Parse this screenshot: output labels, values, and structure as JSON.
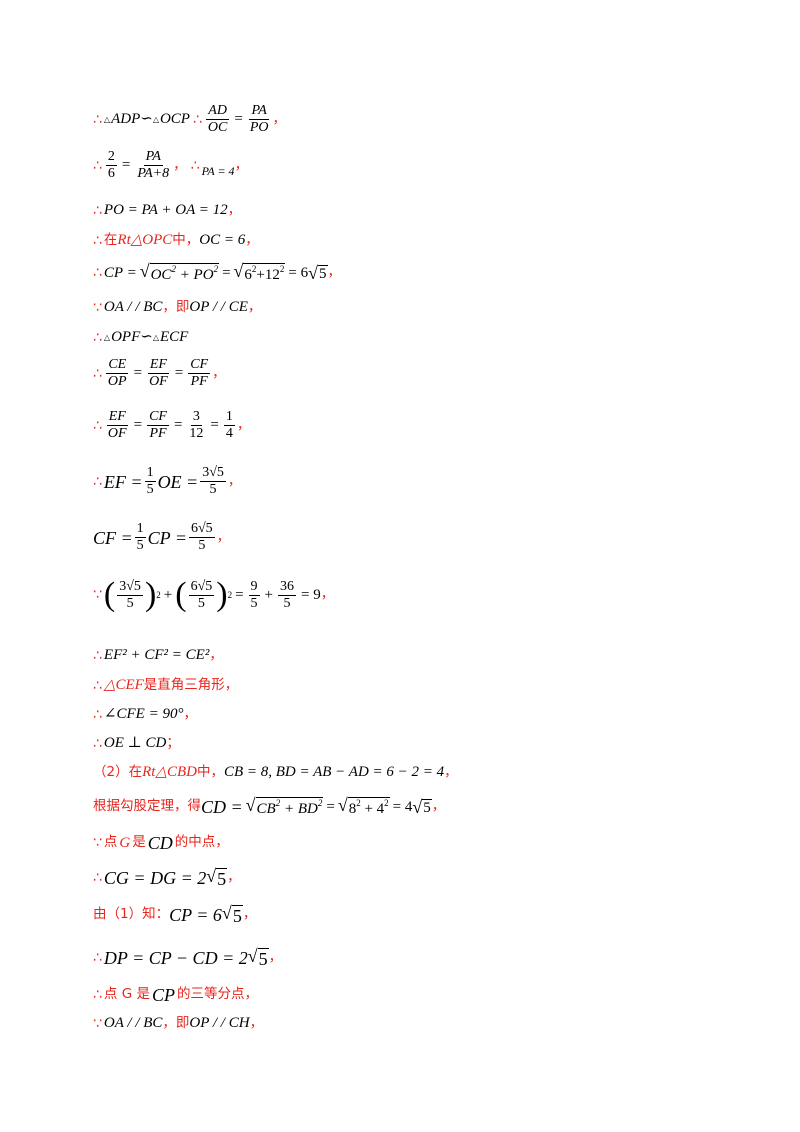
{
  "symbols": {
    "therefore": "∴",
    "because": "∵"
  },
  "lines": {
    "l1": {
      "a": "ADP∽",
      "b": "OCP",
      "fn1": "AD",
      "fd1": "OC",
      "fn2": "PA",
      "fd2": "PO"
    },
    "l2": {
      "n1": "2",
      "d1": "6",
      "n2": "PA",
      "d2": "PA+8",
      "eq": "PA = 4"
    },
    "l3": {
      "expr": "PO = PA + OA = 12"
    },
    "l4": {
      "t1": "在",
      "tri": "Rt△OPC",
      "t2": "中，",
      "expr": "OC = 6"
    },
    "l5": {
      "lhs": "CP =",
      "r1": "OC",
      "r2": "+ PO",
      "r3": "6",
      "r4": "+12",
      "eq": "= 6",
      "r5": "5"
    },
    "l6": {
      "a": "OA / / BC",
      "t": "，即",
      "b": "OP / / CE"
    },
    "l7": {
      "a": "OPF∽",
      "b": "ECF"
    },
    "l8": {
      "n1": "CE",
      "d1": "OP",
      "n2": "EF",
      "d2": "OF",
      "n3": "CF",
      "d3": "PF"
    },
    "l9": {
      "n1": "EF",
      "d1": "OF",
      "n2": "CF",
      "d2": "PF",
      "n3": "3",
      "d3": "12",
      "n4": "1",
      "d4": "4"
    },
    "l10": {
      "lhs": "EF =",
      "fn": "1",
      "fd": "5",
      "mid": "OE =",
      "rn": "3√5",
      "rd": "5"
    },
    "l11": {
      "lhs": "CF =",
      "fn": "1",
      "fd": "5",
      "mid": "CP =",
      "rn": "6√5",
      "rd": "5"
    },
    "l12": {
      "n1": "3√5",
      "d1": "5",
      "n2": "6√5",
      "d2": "5",
      "n3": "9",
      "d3": "5",
      "n4": "36",
      "d4": "5",
      "res": "= 9"
    },
    "l13": {
      "expr": "EF² + CF² = CE²"
    },
    "l14": {
      "tri": "△CEF",
      "t": "是直角三角形"
    },
    "l15": {
      "expr": "∠CFE = 90°"
    },
    "l16": {
      "expr": "OE ⊥ CD"
    },
    "l17": {
      "t1": "（2）在",
      "tri": "Rt△CBD",
      "t2": "中，",
      "expr": "CB = 8, BD = AB − AD = 6 − 2 = 4"
    },
    "l18": {
      "t": "根据勾股定理，得",
      "lhs": "CD =",
      "r1": "CB",
      "r2": "+ BD",
      "r3": "8",
      "r4": "+ 4",
      "eq": "= 4",
      "r5": "5"
    },
    "l19": {
      "t1": "点",
      "g": "G",
      "t2": "是",
      "cd": "CD",
      "t3": "的中点"
    },
    "l20": {
      "expr": "CG = DG = 2",
      "r": "5"
    },
    "l21": {
      "t": "由（1）知：",
      "expr": "CP = 6",
      "r": "5"
    },
    "l22": {
      "expr": "DP = CP − CD = 2",
      "r": "5"
    },
    "l23": {
      "t1": "点 G 是",
      "cp": "CP",
      "t2": "的三等分点"
    },
    "l24": {
      "a": "OA / / BC",
      "t": "，即",
      "b": "OP / / CH"
    }
  }
}
